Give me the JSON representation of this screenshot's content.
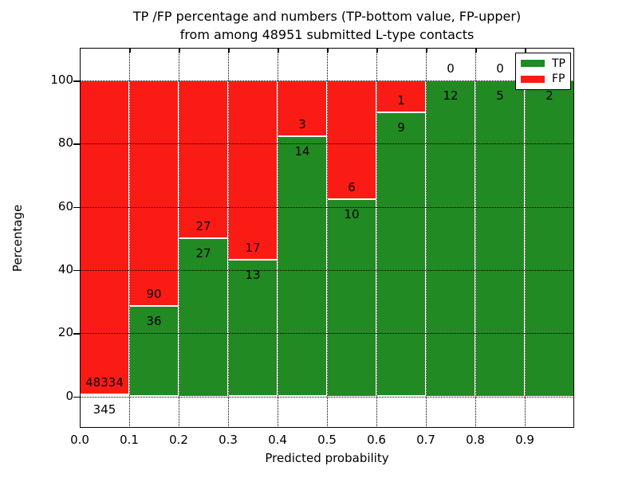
{
  "title": {
    "line1": "TP /FP percentage and numbers (TP-bottom value, FP-upper)",
    "line2": "from among 48951 submitted L-type contacts"
  },
  "chart_data": {
    "type": "bar",
    "stacked": true,
    "normalized": "each bar scaled to 100%, labels show raw counts (TP bottom, FP upper)",
    "title": "TP /FP percentage and numbers (TP-bottom value, FP-upper) from among 48951 submitted L-type contacts",
    "xlabel": "Predicted probability",
    "ylabel": "Percentage",
    "xlim": [
      0.0,
      1.0
    ],
    "ylim": [
      -10,
      110
    ],
    "grid": true,
    "bar_width": 0.1,
    "x_ticks": [
      0.0,
      0.1,
      0.2,
      0.3,
      0.4,
      0.5,
      0.6,
      0.7,
      0.8,
      0.9
    ],
    "x_tick_labels": [
      "0.0",
      "0.1",
      "0.2",
      "0.3",
      "0.4",
      "0.5",
      "0.6",
      "0.7",
      "0.8",
      "0.9"
    ],
    "y_ticks": [
      0,
      20,
      40,
      60,
      80,
      100
    ],
    "y_tick_labels": [
      "0",
      "20",
      "40",
      "60",
      "80",
      "100"
    ],
    "legend": {
      "position": "upper right",
      "entries": [
        {
          "label": "TP",
          "color": "#228a22"
        },
        {
          "label": "FP",
          "color": "#fa1c14"
        }
      ]
    },
    "series": [
      {
        "name": "TP",
        "color": "#228a22",
        "values": [
          345,
          36,
          27,
          13,
          14,
          10,
          9,
          12,
          5,
          2
        ]
      },
      {
        "name": "FP",
        "color": "#fa1c14",
        "values": [
          48334,
          90,
          27,
          17,
          3,
          6,
          1,
          0,
          0,
          0
        ]
      }
    ],
    "bins": [
      {
        "x_start": 0.0,
        "x_end": 0.1,
        "tp": 345,
        "fp": 48334
      },
      {
        "x_start": 0.1,
        "x_end": 0.2,
        "tp": 36,
        "fp": 90
      },
      {
        "x_start": 0.2,
        "x_end": 0.3,
        "tp": 27,
        "fp": 27
      },
      {
        "x_start": 0.3,
        "x_end": 0.4,
        "tp": 13,
        "fp": 17
      },
      {
        "x_start": 0.4,
        "x_end": 0.5,
        "tp": 14,
        "fp": 3
      },
      {
        "x_start": 0.5,
        "x_end": 0.6,
        "tp": 10,
        "fp": 6
      },
      {
        "x_start": 0.6,
        "x_end": 0.7,
        "tp": 9,
        "fp": 1
      },
      {
        "x_start": 0.7,
        "x_end": 0.8,
        "tp": 12,
        "fp": 0
      },
      {
        "x_start": 0.8,
        "x_end": 0.9,
        "tp": 5,
        "fp": 0
      },
      {
        "x_start": 0.9,
        "x_end": 1.0,
        "tp": 2,
        "fp": 0
      }
    ]
  },
  "colors": {
    "tp": "#228a22",
    "fp": "#fa1c14",
    "bar_edge": "#ffffff",
    "grid": "#000000",
    "text": "#000000",
    "background": "#ffffff"
  }
}
